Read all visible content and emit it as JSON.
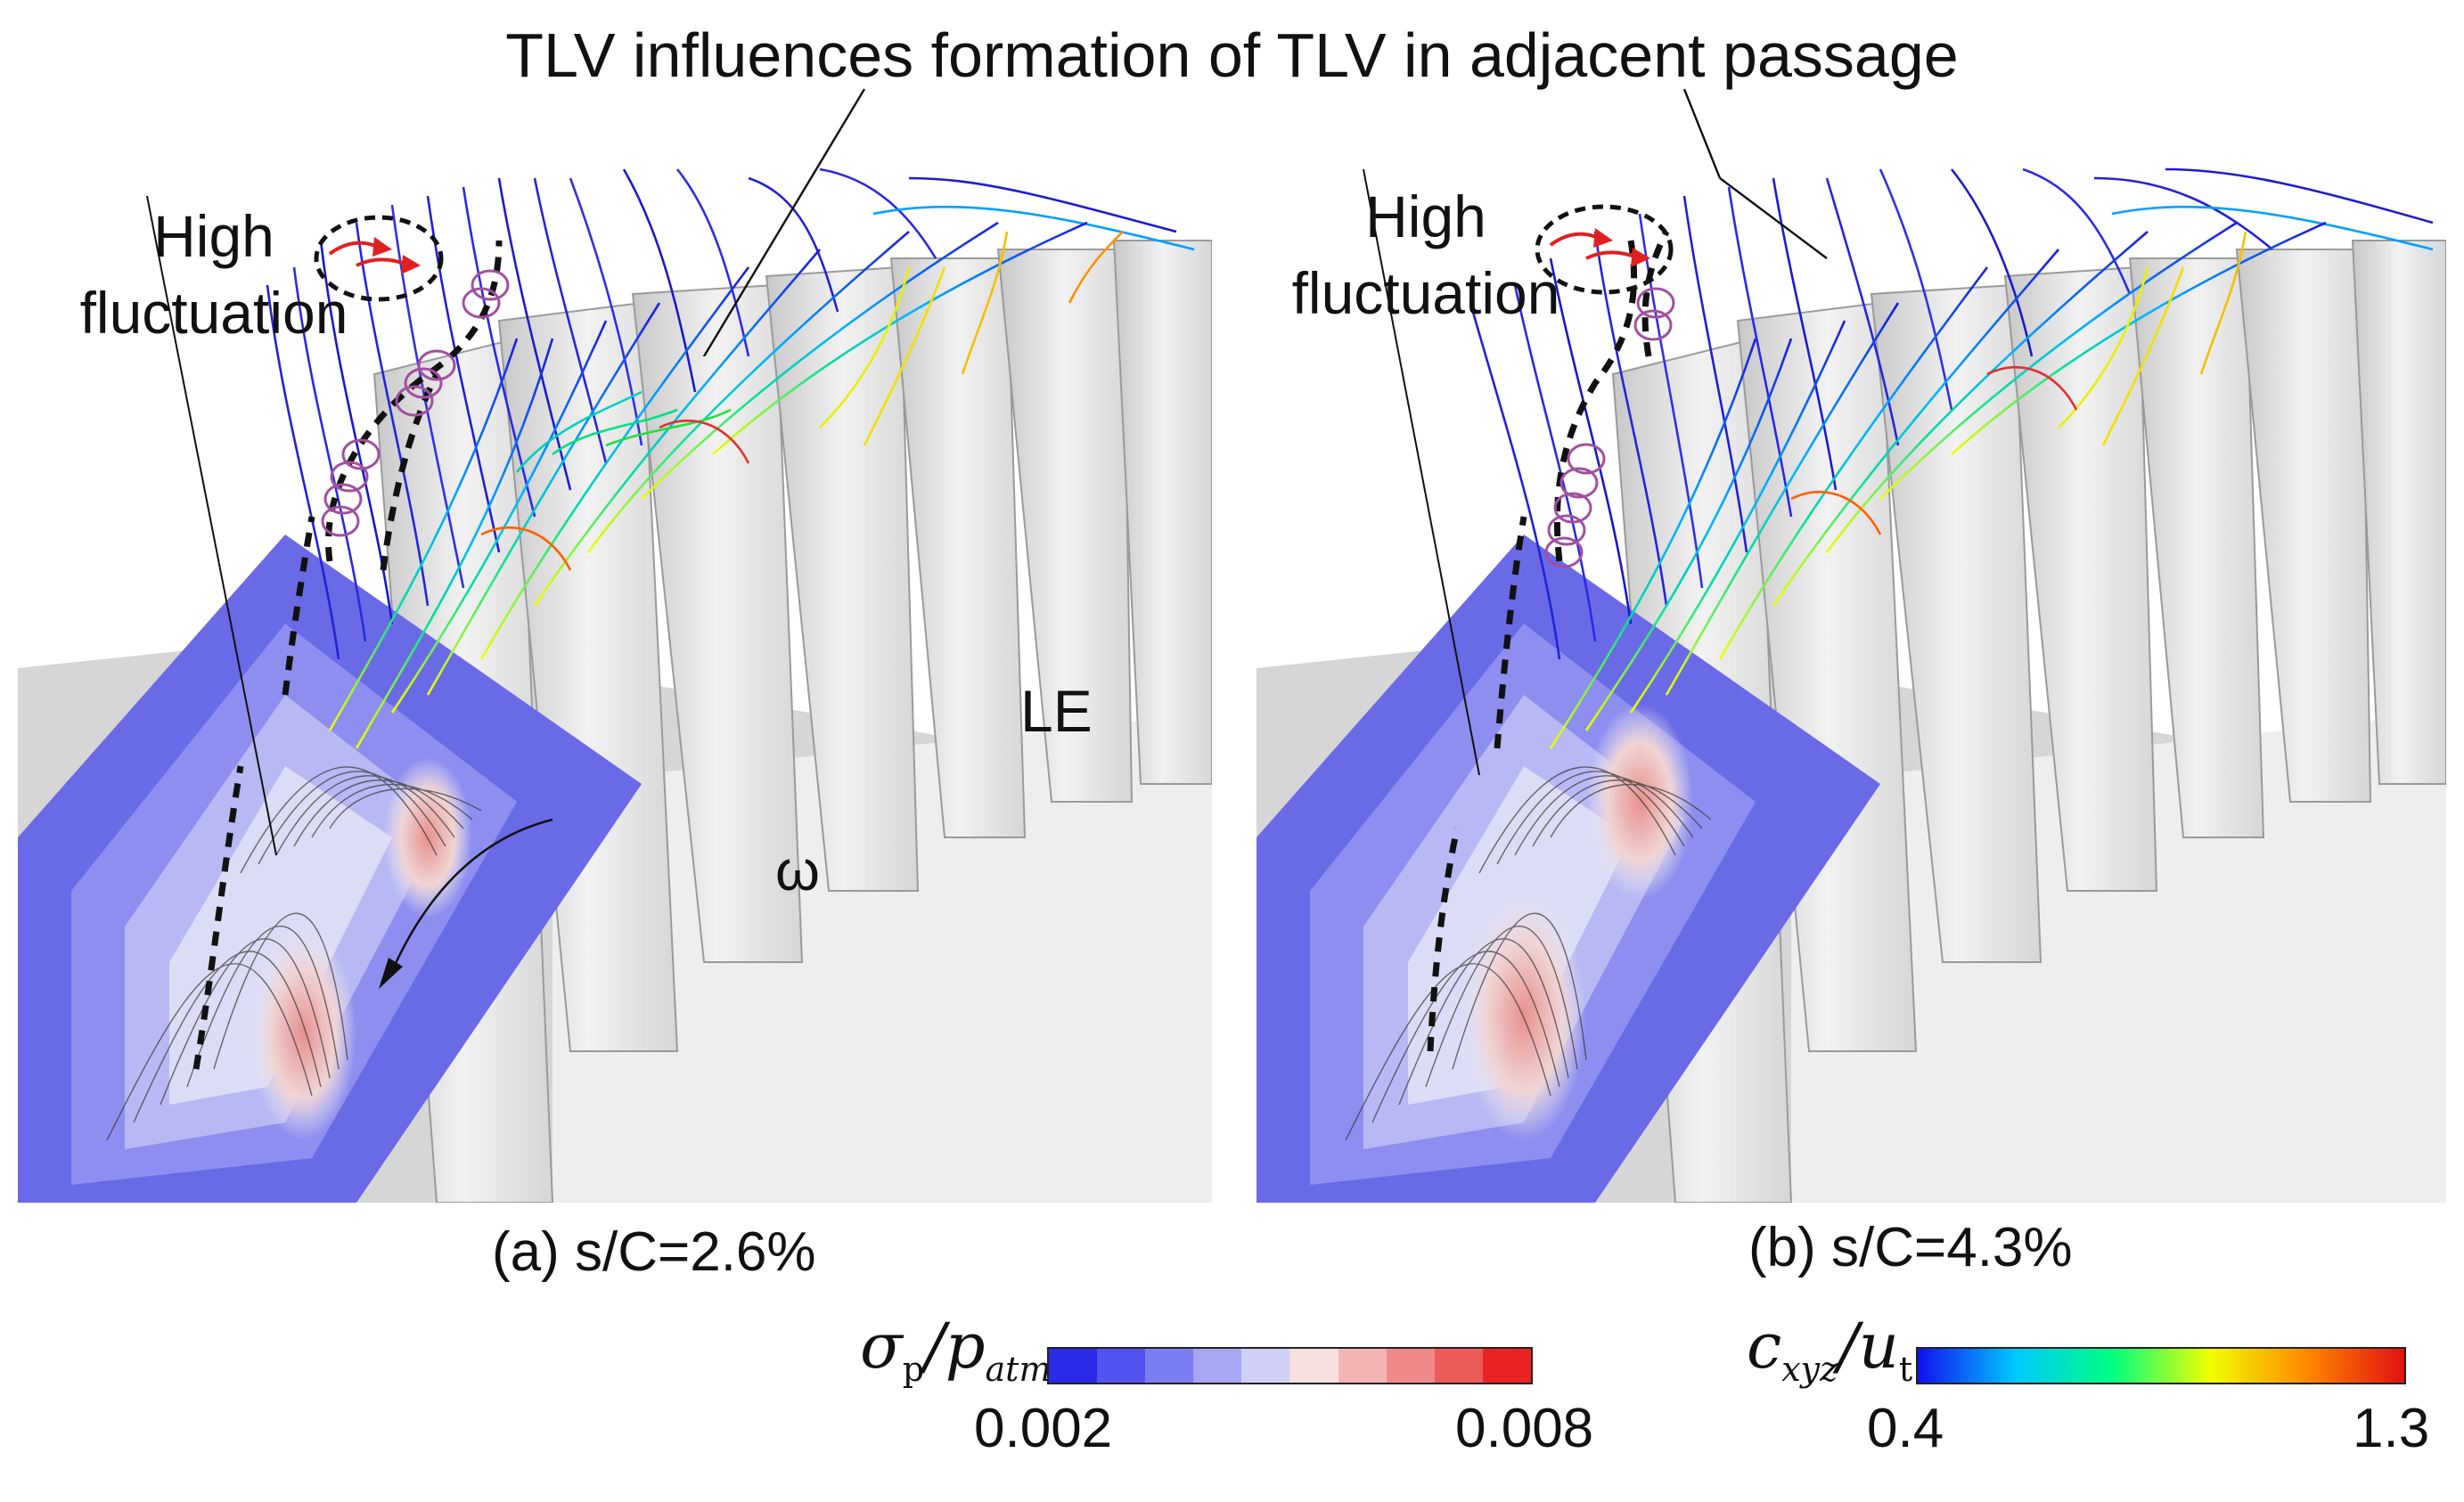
{
  "annotations": {
    "title": "TLV influences formation of TLV in adjacent passage",
    "high_fluctuation_a": [
      "High",
      "fluctuation"
    ],
    "high_fluctuation_b": [
      "High",
      "fluctuation"
    ],
    "le_label": "LE",
    "omega_label": "ω"
  },
  "panels": [
    {
      "caption": "(a) s/C=2.6%"
    },
    {
      "caption": "(b) s/C=4.3%"
    }
  ],
  "legend": {
    "pressure": {
      "label_main": "σ",
      "label_sub1": "p",
      "label_div": "/p",
      "label_sub2": "atm",
      "min": "0.002",
      "max": "0.008",
      "colors": [
        "#2a2ae8",
        "#5252f0",
        "#7c7cf2",
        "#a6a6f4",
        "#d0d0f6",
        "#f6e0e0",
        "#f4b4b4",
        "#f08a8a",
        "#ec5a5a",
        "#ea2424"
      ]
    },
    "velocity": {
      "label_main": "c",
      "label_sub1": "xyz",
      "label_div": "/u",
      "label_sub2": "t",
      "min": "0.4",
      "max": "1.3",
      "gradient": [
        "#1010ee",
        "#00c8ff",
        "#00ff80",
        "#f0ff00",
        "#ff8800",
        "#e01010"
      ]
    }
  },
  "colors": {
    "contour_blue": "#7878ec",
    "blade_gray": "#e4e4e4",
    "vortex_arrow": "#e02020",
    "small_vortex": "#a050a0"
  }
}
